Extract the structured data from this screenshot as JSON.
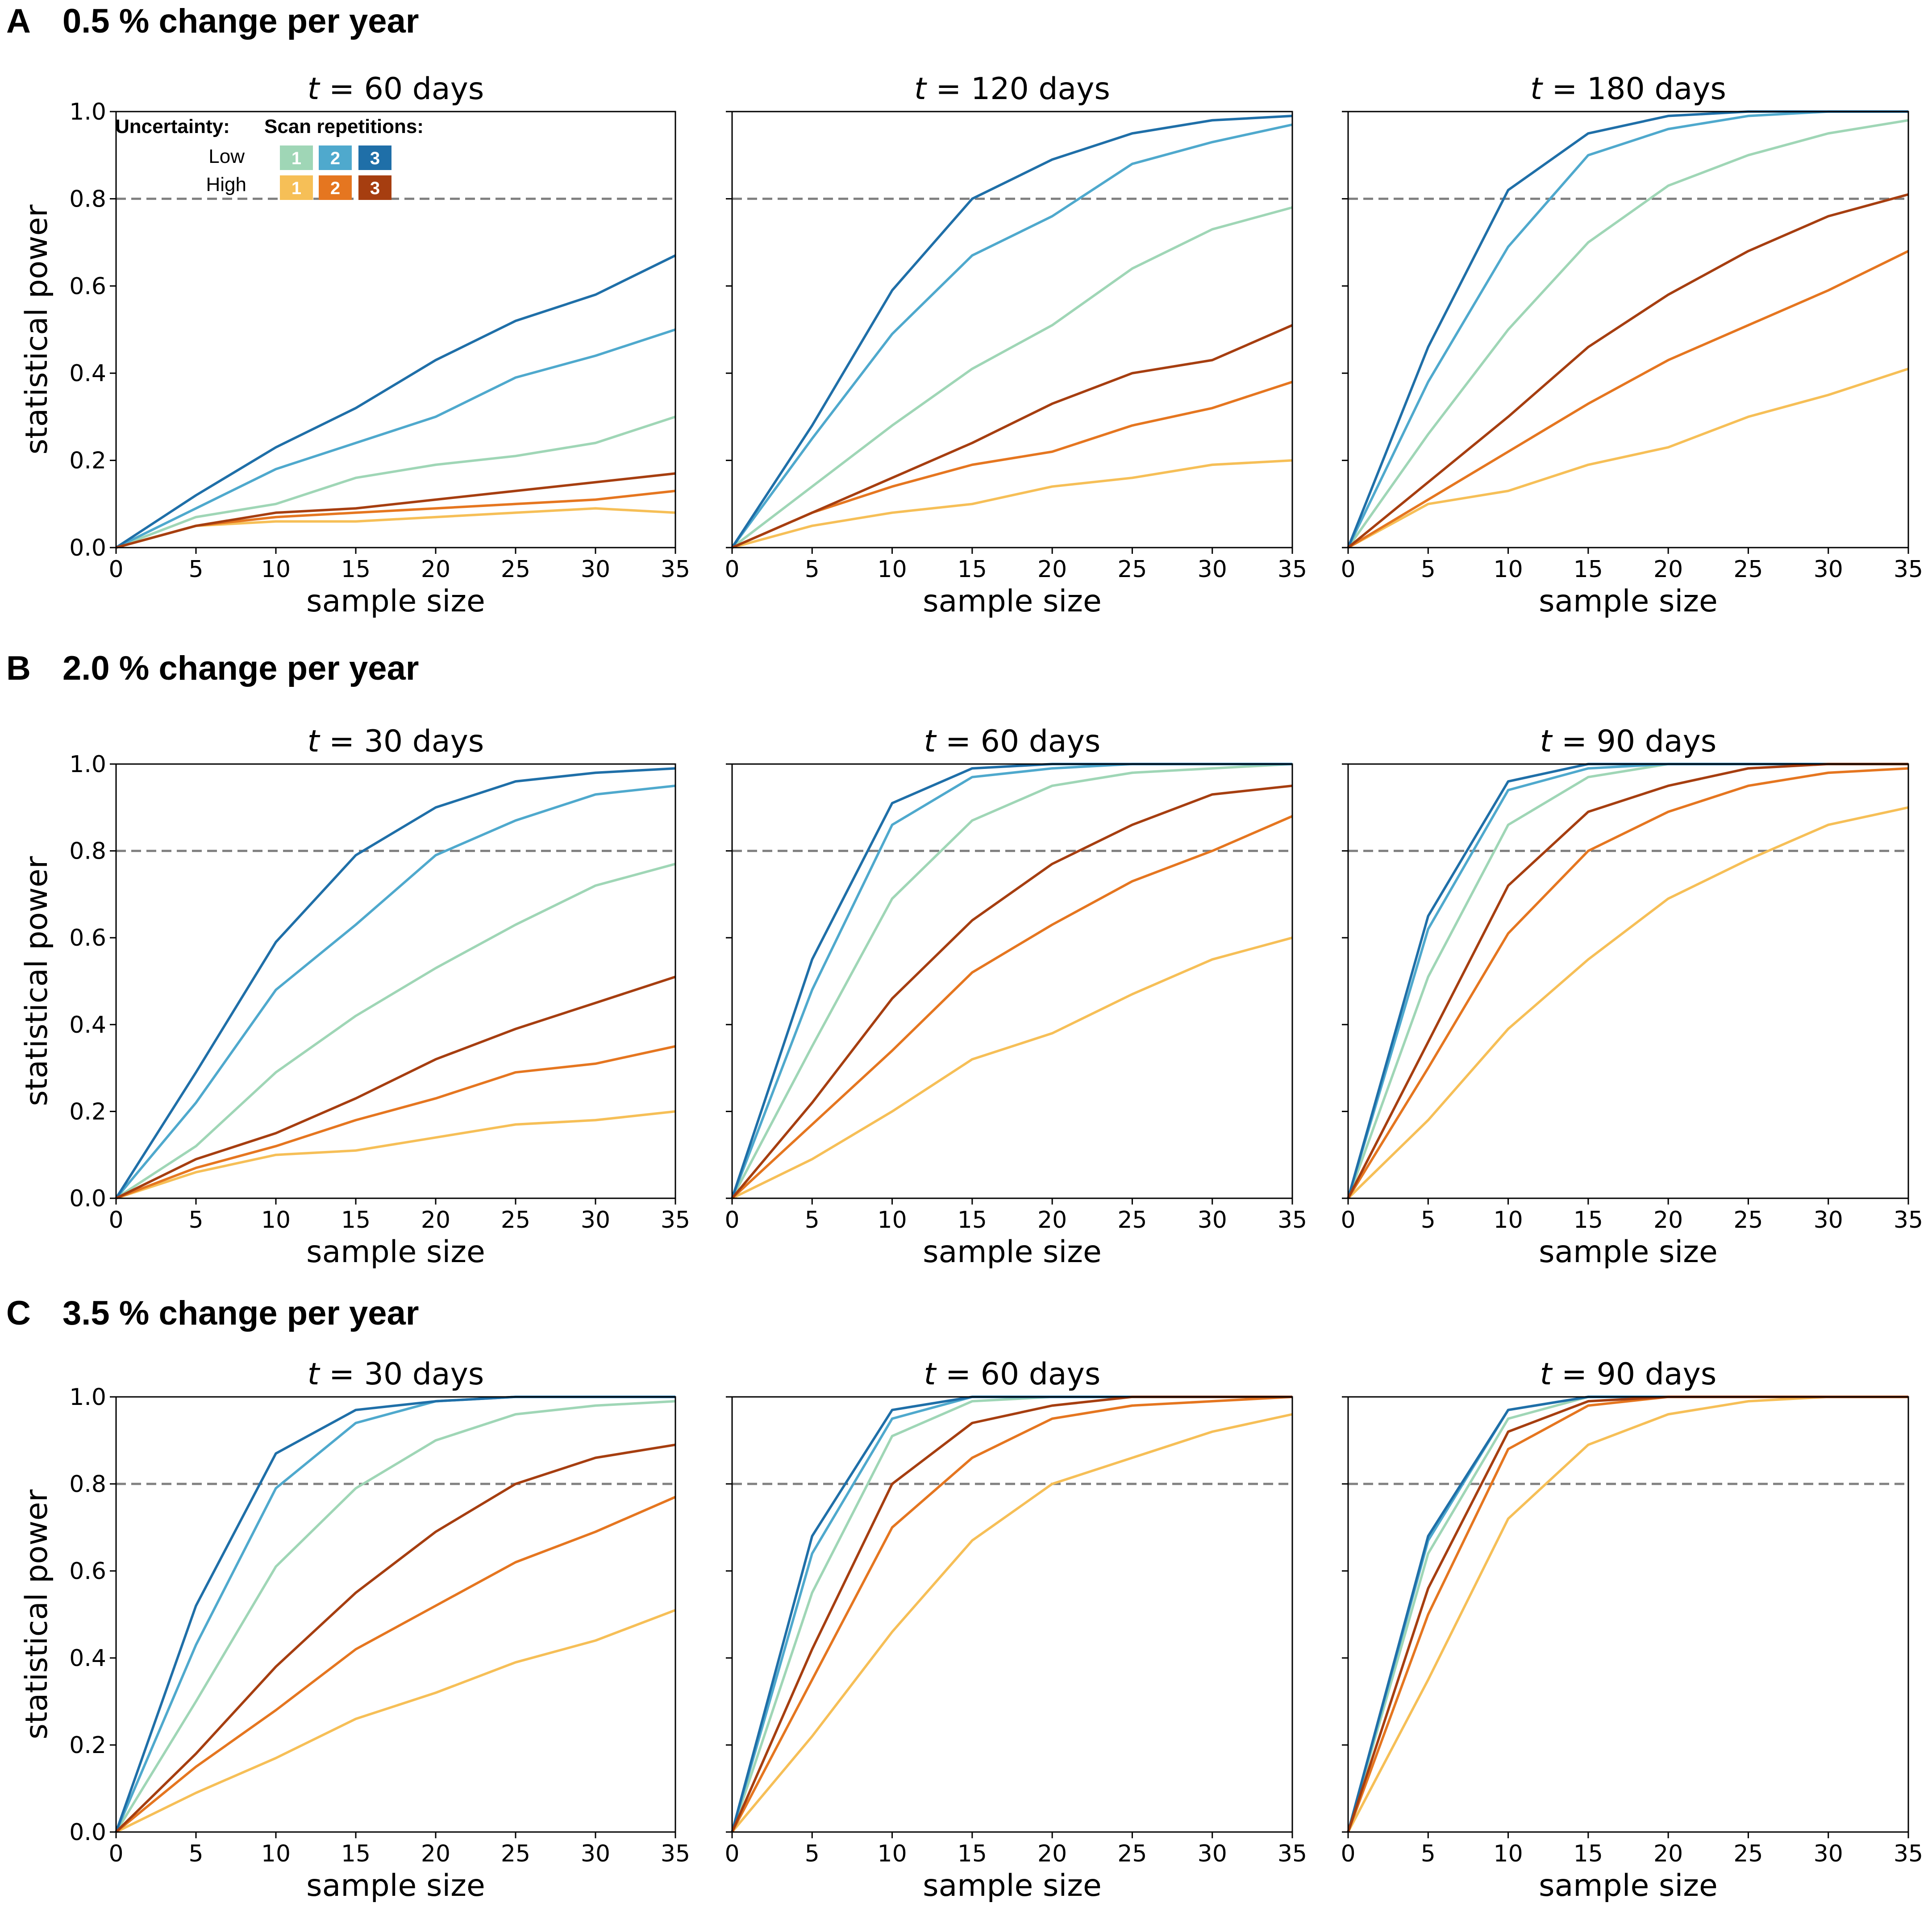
{
  "colors": {
    "low_1": "#9fd6b6",
    "low_2": "#4fa9cd",
    "low_3": "#1f6fa8",
    "high_1": "#f6bf57",
    "high_2": "#e57620",
    "high_3": "#a63e10",
    "threshold": "#808080",
    "axis": "#000000"
  },
  "legend": {
    "uncertainty_label": "Uncertainty:",
    "repetitions_label": "Scan repetitions:",
    "low_label": "Low",
    "high_label": "High",
    "reps": [
      "1",
      "2",
      "3"
    ]
  },
  "rows": [
    {
      "letter": "A",
      "title": "0.5 % change per year"
    },
    {
      "letter": "B",
      "title": "2.0 % change per year"
    },
    {
      "letter": "C",
      "title": "3.5 % change per year"
    }
  ],
  "chart_data": [
    {
      "type": "line",
      "row": 0,
      "col": 0,
      "title_var": "t",
      "title": " = 60 days",
      "xlabel": "sample size",
      "ylabel": "statistical power",
      "xlim": [
        0,
        35
      ],
      "ylim": [
        0,
        1.0
      ],
      "threshold": 0.8,
      "x": [
        0,
        5,
        10,
        15,
        20,
        25,
        30,
        35
      ],
      "xticks": [
        "0",
        "5",
        "10",
        "15",
        "20",
        "25",
        "30",
        "35"
      ],
      "yticks": [
        "0.0",
        "0.2",
        "0.4",
        "0.6",
        "0.8",
        "1.0"
      ],
      "series": [
        {
          "name": "Low 1",
          "color": "low_1",
          "values": [
            0,
            0.07,
            0.1,
            0.16,
            0.19,
            0.21,
            0.24,
            0.3
          ]
        },
        {
          "name": "Low 2",
          "color": "low_2",
          "values": [
            0,
            0.09,
            0.18,
            0.24,
            0.3,
            0.39,
            0.44,
            0.5
          ]
        },
        {
          "name": "Low 3",
          "color": "low_3",
          "values": [
            0,
            0.12,
            0.23,
            0.32,
            0.43,
            0.52,
            0.58,
            0.67
          ]
        },
        {
          "name": "High 1",
          "color": "high_1",
          "values": [
            0,
            0.05,
            0.06,
            0.06,
            0.07,
            0.08,
            0.09,
            0.08
          ]
        },
        {
          "name": "High 2",
          "color": "high_2",
          "values": [
            0,
            0.05,
            0.07,
            0.08,
            0.09,
            0.1,
            0.11,
            0.13
          ]
        },
        {
          "name": "High 3",
          "color": "high_3",
          "values": [
            0,
            0.05,
            0.08,
            0.09,
            0.11,
            0.13,
            0.15,
            0.17
          ]
        }
      ]
    },
    {
      "type": "line",
      "row": 0,
      "col": 1,
      "title_var": "t",
      "title": " = 120 days",
      "xlabel": "sample size",
      "ylabel": "",
      "xlim": [
        0,
        35
      ],
      "ylim": [
        0,
        1.0
      ],
      "threshold": 0.8,
      "x": [
        0,
        5,
        10,
        15,
        20,
        25,
        30,
        35
      ],
      "xticks": [
        "0",
        "5",
        "10",
        "15",
        "20",
        "25",
        "30",
        "35"
      ],
      "yticks": [],
      "series": [
        {
          "name": "Low 1",
          "color": "low_1",
          "values": [
            0,
            0.14,
            0.28,
            0.41,
            0.51,
            0.64,
            0.73,
            0.78
          ]
        },
        {
          "name": "Low 2",
          "color": "low_2",
          "values": [
            0,
            0.25,
            0.49,
            0.67,
            0.76,
            0.88,
            0.93,
            0.97
          ]
        },
        {
          "name": "Low 3",
          "color": "low_3",
          "values": [
            0,
            0.28,
            0.59,
            0.8,
            0.89,
            0.95,
            0.98,
            0.99
          ]
        },
        {
          "name": "High 1",
          "color": "high_1",
          "values": [
            0,
            0.05,
            0.08,
            0.1,
            0.14,
            0.16,
            0.19,
            0.2
          ]
        },
        {
          "name": "High 2",
          "color": "high_2",
          "values": [
            0,
            0.08,
            0.14,
            0.19,
            0.22,
            0.28,
            0.32,
            0.38
          ]
        },
        {
          "name": "High 3",
          "color": "high_3",
          "values": [
            0,
            0.08,
            0.16,
            0.24,
            0.33,
            0.4,
            0.43,
            0.51
          ]
        }
      ]
    },
    {
      "type": "line",
      "row": 0,
      "col": 2,
      "title_var": "t",
      "title": " = 180 days",
      "xlabel": "sample size",
      "ylabel": "",
      "xlim": [
        0,
        35
      ],
      "ylim": [
        0,
        1.0
      ],
      "threshold": 0.8,
      "x": [
        0,
        5,
        10,
        15,
        20,
        25,
        30,
        35
      ],
      "xticks": [
        "0",
        "5",
        "10",
        "15",
        "20",
        "25",
        "30",
        "35"
      ],
      "yticks": [],
      "series": [
        {
          "name": "Low 1",
          "color": "low_1",
          "values": [
            0,
            0.26,
            0.5,
            0.7,
            0.83,
            0.9,
            0.95,
            0.98
          ]
        },
        {
          "name": "Low 2",
          "color": "low_2",
          "values": [
            0,
            0.38,
            0.69,
            0.9,
            0.96,
            0.99,
            1.0,
            1.0
          ]
        },
        {
          "name": "Low 3",
          "color": "low_3",
          "values": [
            0,
            0.46,
            0.82,
            0.95,
            0.99,
            1.0,
            1.0,
            1.0
          ]
        },
        {
          "name": "High 1",
          "color": "high_1",
          "values": [
            0,
            0.1,
            0.13,
            0.19,
            0.23,
            0.3,
            0.35,
            0.41
          ]
        },
        {
          "name": "High 2",
          "color": "high_2",
          "values": [
            0,
            0.11,
            0.22,
            0.33,
            0.43,
            0.51,
            0.59,
            0.68
          ]
        },
        {
          "name": "High 3",
          "color": "high_3",
          "values": [
            0,
            0.15,
            0.3,
            0.46,
            0.58,
            0.68,
            0.76,
            0.81
          ]
        }
      ]
    },
    {
      "type": "line",
      "row": 1,
      "col": 0,
      "title_var": "t",
      "title": " = 30 days",
      "xlabel": "sample size",
      "ylabel": "statistical power",
      "xlim": [
        0,
        35
      ],
      "ylim": [
        0,
        1.0
      ],
      "threshold": 0.8,
      "x": [
        0,
        5,
        10,
        15,
        20,
        25,
        30,
        35
      ],
      "xticks": [
        "0",
        "5",
        "10",
        "15",
        "20",
        "25",
        "30",
        "35"
      ],
      "yticks": [
        "0.0",
        "0.2",
        "0.4",
        "0.6",
        "0.8",
        "1.0"
      ],
      "series": [
        {
          "name": "Low 1",
          "color": "low_1",
          "values": [
            0,
            0.12,
            0.29,
            0.42,
            0.53,
            0.63,
            0.72,
            0.77
          ]
        },
        {
          "name": "Low 2",
          "color": "low_2",
          "values": [
            0,
            0.22,
            0.48,
            0.63,
            0.79,
            0.87,
            0.93,
            0.95
          ]
        },
        {
          "name": "Low 3",
          "color": "low_3",
          "values": [
            0,
            0.29,
            0.59,
            0.79,
            0.9,
            0.96,
            0.98,
            0.99
          ]
        },
        {
          "name": "High 1",
          "color": "high_1",
          "values": [
            0,
            0.06,
            0.1,
            0.11,
            0.14,
            0.17,
            0.18,
            0.2
          ]
        },
        {
          "name": "High 2",
          "color": "high_2",
          "values": [
            0,
            0.07,
            0.12,
            0.18,
            0.23,
            0.29,
            0.31,
            0.35
          ]
        },
        {
          "name": "High 3",
          "color": "high_3",
          "values": [
            0,
            0.09,
            0.15,
            0.23,
            0.32,
            0.39,
            0.45,
            0.51
          ]
        }
      ]
    },
    {
      "type": "line",
      "row": 1,
      "col": 1,
      "title_var": "t",
      "title": " = 60 days",
      "xlabel": "sample size",
      "ylabel": "",
      "xlim": [
        0,
        35
      ],
      "ylim": [
        0,
        1.0
      ],
      "threshold": 0.8,
      "x": [
        0,
        5,
        10,
        15,
        20,
        25,
        30,
        35
      ],
      "xticks": [
        "0",
        "5",
        "10",
        "15",
        "20",
        "25",
        "30",
        "35"
      ],
      "yticks": [],
      "series": [
        {
          "name": "Low 1",
          "color": "low_1",
          "values": [
            0,
            0.35,
            0.69,
            0.87,
            0.95,
            0.98,
            0.99,
            1.0
          ]
        },
        {
          "name": "Low 2",
          "color": "low_2",
          "values": [
            0,
            0.48,
            0.86,
            0.97,
            0.99,
            1.0,
            1.0,
            1.0
          ]
        },
        {
          "name": "Low 3",
          "color": "low_3",
          "values": [
            0,
            0.55,
            0.91,
            0.99,
            1.0,
            1.0,
            1.0,
            1.0
          ]
        },
        {
          "name": "High 1",
          "color": "high_1",
          "values": [
            0,
            0.09,
            0.2,
            0.32,
            0.38,
            0.47,
            0.55,
            0.6
          ]
        },
        {
          "name": "High 2",
          "color": "high_2",
          "values": [
            0,
            0.17,
            0.34,
            0.52,
            0.63,
            0.73,
            0.8,
            0.88
          ]
        },
        {
          "name": "High 3",
          "color": "high_3",
          "values": [
            0,
            0.22,
            0.46,
            0.64,
            0.77,
            0.86,
            0.93,
            0.95
          ]
        }
      ]
    },
    {
      "type": "line",
      "row": 1,
      "col": 2,
      "title_var": "t",
      "title": " = 90 days",
      "xlabel": "sample size",
      "ylabel": "",
      "xlim": [
        0,
        35
      ],
      "ylim": [
        0,
        1.0
      ],
      "threshold": 0.8,
      "x": [
        0,
        5,
        10,
        15,
        20,
        25,
        30,
        35
      ],
      "xticks": [
        "0",
        "5",
        "10",
        "15",
        "20",
        "25",
        "30",
        "35"
      ],
      "yticks": [],
      "series": [
        {
          "name": "Low 1",
          "color": "low_1",
          "values": [
            0,
            0.51,
            0.86,
            0.97,
            1.0,
            1.0,
            1.0,
            1.0
          ]
        },
        {
          "name": "Low 2",
          "color": "low_2",
          "values": [
            0,
            0.62,
            0.94,
            0.99,
            1.0,
            1.0,
            1.0,
            1.0
          ]
        },
        {
          "name": "Low 3",
          "color": "low_3",
          "values": [
            0,
            0.65,
            0.96,
            1.0,
            1.0,
            1.0,
            1.0,
            1.0
          ]
        },
        {
          "name": "High 1",
          "color": "high_1",
          "values": [
            0,
            0.18,
            0.39,
            0.55,
            0.69,
            0.78,
            0.86,
            0.9
          ]
        },
        {
          "name": "High 2",
          "color": "high_2",
          "values": [
            0,
            0.3,
            0.61,
            0.8,
            0.89,
            0.95,
            0.98,
            0.99
          ]
        },
        {
          "name": "High 3",
          "color": "high_3",
          "values": [
            0,
            0.36,
            0.72,
            0.89,
            0.95,
            0.99,
            1.0,
            1.0
          ]
        }
      ]
    },
    {
      "type": "line",
      "row": 2,
      "col": 0,
      "title_var": "t",
      "title": " = 30 days",
      "xlabel": "sample size",
      "ylabel": "statistical power",
      "xlim": [
        0,
        35
      ],
      "ylim": [
        0,
        1.0
      ],
      "threshold": 0.8,
      "x": [
        0,
        5,
        10,
        15,
        20,
        25,
        30,
        35
      ],
      "xticks": [
        "0",
        "5",
        "10",
        "15",
        "20",
        "25",
        "30",
        "35"
      ],
      "yticks": [
        "0.0",
        "0.2",
        "0.4",
        "0.6",
        "0.8",
        "1.0"
      ],
      "series": [
        {
          "name": "Low 1",
          "color": "low_1",
          "values": [
            0,
            0.3,
            0.61,
            0.79,
            0.9,
            0.96,
            0.98,
            0.99
          ]
        },
        {
          "name": "Low 2",
          "color": "low_2",
          "values": [
            0,
            0.43,
            0.79,
            0.94,
            0.99,
            1.0,
            1.0,
            1.0
          ]
        },
        {
          "name": "Low 3",
          "color": "low_3",
          "values": [
            0,
            0.52,
            0.87,
            0.97,
            0.99,
            1.0,
            1.0,
            1.0
          ]
        },
        {
          "name": "High 1",
          "color": "high_1",
          "values": [
            0,
            0.09,
            0.17,
            0.26,
            0.32,
            0.39,
            0.44,
            0.51
          ]
        },
        {
          "name": "High 2",
          "color": "high_2",
          "values": [
            0,
            0.15,
            0.28,
            0.42,
            0.52,
            0.62,
            0.69,
            0.77
          ]
        },
        {
          "name": "High 3",
          "color": "high_3",
          "values": [
            0,
            0.18,
            0.38,
            0.55,
            0.69,
            0.8,
            0.86,
            0.89
          ]
        }
      ]
    },
    {
      "type": "line",
      "row": 2,
      "col": 1,
      "title_var": "t",
      "title": " = 60 days",
      "xlabel": "sample size",
      "ylabel": "",
      "xlim": [
        0,
        35
      ],
      "ylim": [
        0,
        1.0
      ],
      "threshold": 0.8,
      "x": [
        0,
        5,
        10,
        15,
        20,
        25,
        30,
        35
      ],
      "xticks": [
        "0",
        "5",
        "10",
        "15",
        "20",
        "25",
        "30",
        "35"
      ],
      "yticks": [],
      "series": [
        {
          "name": "Low 1",
          "color": "low_1",
          "values": [
            0,
            0.55,
            0.91,
            0.99,
            1.0,
            1.0,
            1.0,
            1.0
          ]
        },
        {
          "name": "Low 2",
          "color": "low_2",
          "values": [
            0,
            0.64,
            0.95,
            1.0,
            1.0,
            1.0,
            1.0,
            1.0
          ]
        },
        {
          "name": "Low 3",
          "color": "low_3",
          "values": [
            0,
            0.68,
            0.97,
            1.0,
            1.0,
            1.0,
            1.0,
            1.0
          ]
        },
        {
          "name": "High 1",
          "color": "high_1",
          "values": [
            0,
            0.22,
            0.46,
            0.67,
            0.8,
            0.86,
            0.92,
            0.96
          ]
        },
        {
          "name": "High 2",
          "color": "high_2",
          "values": [
            0,
            0.35,
            0.7,
            0.86,
            0.95,
            0.98,
            0.99,
            1.0
          ]
        },
        {
          "name": "High 3",
          "color": "high_3",
          "values": [
            0,
            0.42,
            0.8,
            0.94,
            0.98,
            1.0,
            1.0,
            1.0
          ]
        }
      ]
    },
    {
      "type": "line",
      "row": 2,
      "col": 2,
      "title_var": "t",
      "title": " = 90 days",
      "xlabel": "sample size",
      "ylabel": "",
      "xlim": [
        0,
        35
      ],
      "ylim": [
        0,
        1.0
      ],
      "threshold": 0.8,
      "x": [
        0,
        5,
        10,
        15,
        20,
        25,
        30,
        35
      ],
      "xticks": [
        "0",
        "5",
        "10",
        "15",
        "20",
        "25",
        "30",
        "35"
      ],
      "yticks": [],
      "series": [
        {
          "name": "Low 1",
          "color": "low_1",
          "values": [
            0,
            0.64,
            0.95,
            1.0,
            1.0,
            1.0,
            1.0,
            1.0
          ]
        },
        {
          "name": "Low 2",
          "color": "low_2",
          "values": [
            0,
            0.67,
            0.97,
            1.0,
            1.0,
            1.0,
            1.0,
            1.0
          ]
        },
        {
          "name": "Low 3",
          "color": "low_3",
          "values": [
            0,
            0.68,
            0.97,
            1.0,
            1.0,
            1.0,
            1.0,
            1.0
          ]
        },
        {
          "name": "High 1",
          "color": "high_1",
          "values": [
            0,
            0.35,
            0.72,
            0.89,
            0.96,
            0.99,
            1.0,
            1.0
          ]
        },
        {
          "name": "High 2",
          "color": "high_2",
          "values": [
            0,
            0.5,
            0.88,
            0.98,
            1.0,
            1.0,
            1.0,
            1.0
          ]
        },
        {
          "name": "High 3",
          "color": "high_3",
          "values": [
            0,
            0.56,
            0.92,
            0.99,
            1.0,
            1.0,
            1.0,
            1.0
          ]
        }
      ]
    }
  ]
}
